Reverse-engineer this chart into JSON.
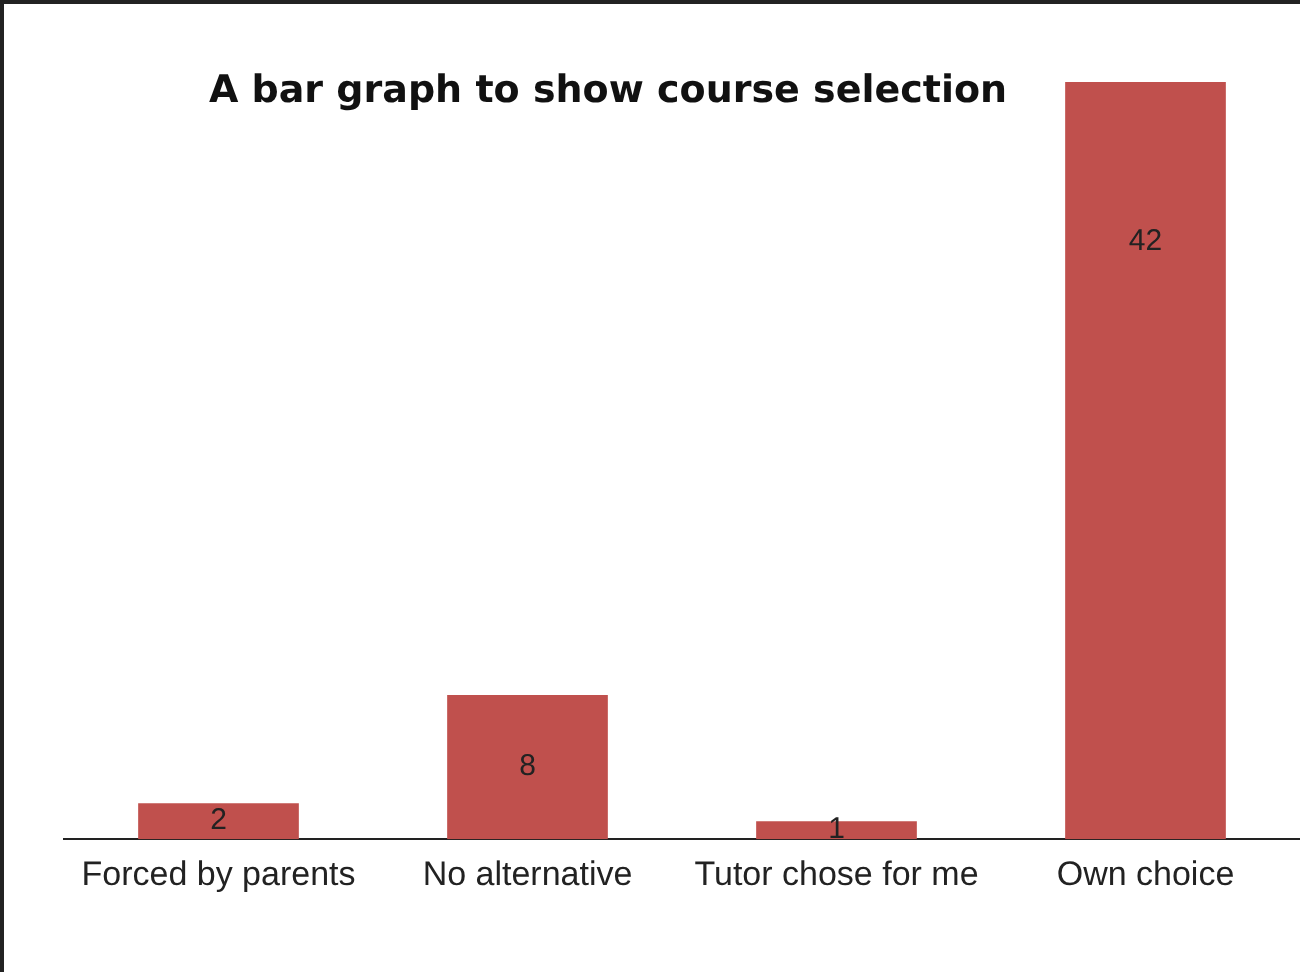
{
  "chart_data": {
    "type": "bar",
    "title": "A bar graph to show course selection",
    "categories": [
      "Forced by parents",
      "No alternative",
      "Tutor chose for me",
      "Own choice"
    ],
    "values": [
      2,
      8,
      1,
      42
    ],
    "color": "#c0504d",
    "data_labels": true,
    "grid": false,
    "legend": false
  }
}
